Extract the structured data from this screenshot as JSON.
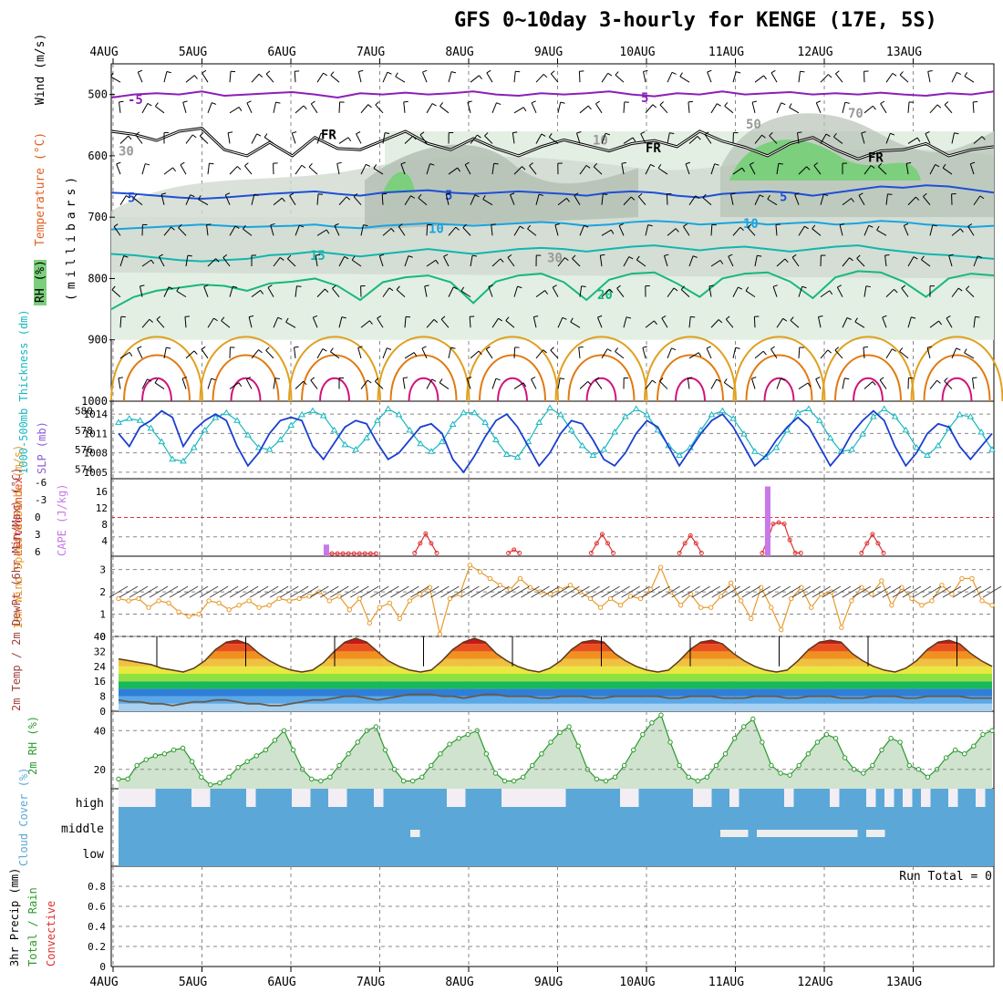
{
  "title": "GFS 0~10day 3-hourly for KENGE (17E, 5S)",
  "date_labels": [
    "4AUG",
    "5AUG",
    "6AUG",
    "7AUG",
    "8AUG",
    "9AUG",
    "10AUG",
    "11AUG",
    "12AUG",
    "13AUG"
  ],
  "colors": {
    "rh_light": "#e3efe3",
    "rh_mid": "#cfd9cf",
    "rh_dark": "#b7c2b7",
    "rh_green": "#7ccf7c",
    "t_m5": "#8b1fb8",
    "t_5": "#1f4fd6",
    "t_10": "#1aa3e0",
    "t_15": "#12b5b0",
    "t_20": "#17b87a",
    "t_25": "#e0a020",
    "t_30": "#e07a10",
    "t_35": "#d1127a",
    "slp": "#1a3fd0",
    "thickness": "#18b8c0",
    "lifted": "#e03030",
    "cape": "#c878e8",
    "wind": "#e89a2c",
    "rh2m": "#2a9a2a",
    "cloud": "#5ba8d8",
    "dewpt": "#6a5a44"
  },
  "chart_data": [
    {
      "panel": "upper_air",
      "type": "area",
      "ylabel": "(millibars)",
      "legend": [
        "RH (%)",
        "Temperature (°C)",
        "Wind (m/s)"
      ],
      "y_axis_label": "millibars",
      "ylim": [
        1000,
        450
      ],
      "y_ticks": [
        500,
        600,
        700,
        800,
        900,
        1000
      ],
      "isotherm_labels": [
        "-5",
        "5",
        "-5",
        "FR",
        "FR",
        "FR",
        "5",
        "5",
        "5",
        "10",
        "10",
        "15",
        "20",
        "30",
        "10",
        "50",
        "30",
        "70"
      ],
      "freezing_level_mb": [
        560,
        565,
        575,
        560,
        555,
        590,
        600,
        578,
        600,
        570,
        588,
        590,
        575,
        560,
        580,
        590,
        572,
        588,
        600,
        585,
        574,
        583,
        592,
        580,
        575,
        585,
        560,
        576,
        586,
        600,
        580,
        570,
        590,
        605,
        592,
        590,
        580,
        600,
        590,
        585
      ],
      "isotherm_m5_mb": [
        505,
        500,
        498,
        500,
        495,
        502,
        500,
        498,
        496,
        500,
        505,
        498,
        500,
        497,
        500,
        498,
        495,
        500,
        502,
        498,
        500,
        498,
        495,
        500,
        503,
        498,
        500,
        495,
        500,
        498,
        496,
        500,
        498,
        500,
        497,
        500,
        502,
        498,
        500,
        495
      ],
      "isotherm_5_mb": [
        660,
        662,
        665,
        668,
        670,
        668,
        665,
        662,
        660,
        658,
        662,
        665,
        660,
        658,
        656,
        660,
        662,
        660,
        658,
        660,
        662,
        665,
        660,
        658,
        660,
        665,
        668,
        662,
        660,
        658,
        660,
        665,
        660,
        655,
        650,
        652,
        648,
        650,
        655,
        660
      ],
      "isotherm_10_mb": [
        720,
        718,
        716,
        714,
        712,
        714,
        716,
        715,
        714,
        712,
        716,
        718,
        714,
        712,
        710,
        712,
        714,
        712,
        710,
        708,
        710,
        714,
        712,
        708,
        706,
        708,
        712,
        710,
        708,
        712,
        710,
        708,
        712,
        710,
        706,
        708,
        712,
        714,
        716,
        714
      ],
      "isotherm_15_mb": [
        760,
        762,
        766,
        770,
        772,
        770,
        768,
        762,
        760,
        756,
        760,
        764,
        760,
        756,
        752,
        756,
        760,
        756,
        752,
        750,
        752,
        756,
        752,
        748,
        746,
        750,
        754,
        750,
        748,
        752,
        756,
        752,
        748,
        746,
        752,
        756,
        760,
        762,
        765,
        768
      ],
      "isotherm_20_mb": [
        850,
        830,
        820,
        815,
        810,
        812,
        820,
        808,
        805,
        800,
        812,
        835,
        806,
        798,
        795,
        806,
        840,
        805,
        795,
        792,
        806,
        835,
        802,
        792,
        790,
        808,
        830,
        800,
        792,
        790,
        805,
        832,
        798,
        788,
        790,
        805,
        830,
        800,
        792,
        795
      ]
    },
    {
      "panel": "slp_thickness",
      "type": "line",
      "ylabel_left": "1000-500mb Thickness (dm)",
      "ylabel_right": "SLP (mb)",
      "left_ticks": [
        574,
        576,
        578,
        580
      ],
      "right_ticks": [
        1005,
        1008,
        1011,
        1014
      ],
      "ylim_slp": [
        1004,
        1016
      ],
      "ylim_thickness": [
        573,
        581
      ],
      "series": [
        {
          "name": "SLP",
          "values": [
            1011,
            1009,
            1012,
            1013,
            1014.5,
            1013.5,
            1009,
            1011.5,
            1013,
            1014,
            1013,
            1009,
            1006,
            1008,
            1011,
            1013,
            1013.5,
            1013,
            1009,
            1007,
            1009.5,
            1012,
            1013,
            1012.5,
            1009.5,
            1007,
            1008,
            1010,
            1012,
            1012.5,
            1011,
            1007,
            1005,
            1007.5,
            1010.5,
            1013,
            1014,
            1012,
            1009,
            1006,
            1008,
            1011,
            1013,
            1012.5,
            1010,
            1007,
            1006,
            1008,
            1011,
            1013,
            1012,
            1009,
            1006,
            1008.5,
            1011,
            1013,
            1014,
            1012,
            1009,
            1006,
            1007.5,
            1010,
            1012,
            1013.5,
            1012,
            1009,
            1006,
            1008,
            1011,
            1013,
            1014.5,
            1013,
            1009,
            1006,
            1008,
            1011,
            1012.5,
            1012,
            1009,
            1007,
            1009,
            1011
          ]
        },
        {
          "name": "Thickness",
          "values": [
            578.8,
            579.2,
            579.0,
            578.2,
            576.8,
            575.0,
            574.8,
            576.2,
            578.0,
            579.3,
            579.8,
            579.0,
            577.5,
            576.2,
            576.0,
            577.0,
            578.5,
            579.6,
            580.0,
            579.5,
            578.0,
            576.5,
            576.0,
            577.2,
            579.0,
            580.2,
            579.6,
            578.0,
            576.6,
            575.8,
            576.8,
            578.6,
            579.8,
            579.8,
            578.8,
            577.0,
            575.5,
            575.2,
            576.8,
            578.8,
            580.3,
            579.6,
            578.0,
            576.4,
            575.4,
            576.0,
            577.8,
            579.4,
            580.2,
            579.6,
            578.0,
            576.4,
            575.4,
            576.2,
            578.0,
            579.6,
            580.0,
            579.2,
            577.6,
            575.8,
            575.2,
            576.2,
            578.0,
            579.8,
            580.2,
            579.0,
            577.2,
            575.8,
            576.0,
            577.6,
            579.4,
            580.2,
            579.4,
            578.0,
            576.2,
            575.4,
            576.4,
            578.2,
            579.6,
            579.4,
            577.8,
            576.0
          ]
        }
      ]
    },
    {
      "panel": "stability",
      "type": "line",
      "ylabel_left": "Lifted Index",
      "ylabel_right": "CAPE (J/kg)",
      "li_ticks": [
        "-6",
        "-3",
        "0",
        "3",
        "6"
      ],
      "cape_ticks": [
        "16",
        "12",
        "8",
        "4"
      ],
      "series": [
        {
          "name": "Lifted Index",
          "x": [
            19.5,
            20,
            20.5,
            21,
            21.5,
            22,
            22.5,
            23,
            23.5,
            24,
            27.5,
            28,
            28.5,
            29,
            29.5,
            36,
            36.5,
            37,
            43.5,
            44,
            44.5,
            45,
            45.5,
            51.5,
            52,
            52.5,
            53,
            53.5,
            59,
            59.5,
            60,
            60.5,
            61,
            61.5,
            62,
            62.5,
            68,
            68.5,
            69,
            69.5,
            70
          ],
          "values": [
            5.6,
            5.6,
            5.6,
            5.6,
            5.6,
            5.6,
            5.6,
            5.6,
            5.6,
            5.6,
            5.5,
            4.0,
            2.5,
            4.0,
            5.5,
            5.5,
            5.0,
            5.5,
            5.5,
            4.0,
            2.6,
            4.0,
            5.5,
            5.5,
            4.0,
            2.8,
            4.0,
            5.5,
            5.5,
            3.5,
            1.0,
            0.8,
            1.0,
            3.5,
            5.5,
            5.5,
            5.5,
            4.0,
            2.6,
            4.0,
            5.5
          ]
        },
        {
          "name": "CAPE",
          "bars": [
            {
              "x": 19.5,
              "value": 3
            },
            {
              "x": 59.5,
              "value": 18
            }
          ]
        }
      ]
    },
    {
      "panel": "wind10m",
      "type": "line",
      "ylabel": "10m Wind Speed & Barbs (m/s)",
      "y_ticks": [
        0,
        1,
        2,
        3
      ],
      "ylim": [
        0,
        3.6
      ],
      "series": [
        {
          "name": "Speed",
          "values": [
            1.7,
            1.6,
            1.7,
            1.3,
            1.6,
            1.5,
            1.1,
            0.9,
            1.0,
            1.6,
            1.5,
            1.2,
            1.4,
            1.6,
            1.3,
            1.4,
            1.7,
            1.6,
            1.7,
            1.8,
            2.0,
            1.6,
            1.8,
            1.2,
            1.7,
            0.6,
            1.3,
            1.5,
            0.8,
            1.6,
            1.9,
            2.2,
            0.1,
            1.7,
            1.9,
            3.2,
            2.9,
            2.6,
            2.3,
            2.1,
            2.6,
            2.2,
            2.0,
            1.9,
            2.1,
            2.3,
            2.0,
            1.7,
            1.3,
            1.7,
            1.4,
            1.8,
            1.7,
            2.1,
            3.1,
            2.0,
            1.4,
            1.9,
            1.3,
            1.3,
            1.8,
            2.4,
            1.6,
            0.8,
            2.2,
            1.3,
            0.3,
            1.7,
            2.2,
            1.3,
            1.9,
            2.0,
            0.4,
            1.6,
            2.2,
            1.9,
            2.5,
            1.4,
            2.2,
            1.7,
            1.4,
            1.6,
            2.3,
            1.9,
            2.6,
            2.6,
            1.6,
            1.4
          ]
        }
      ]
    },
    {
      "panel": "temp2m",
      "type": "area",
      "ylabel": "2m Temp / 2m DewPt (6hr Min/Max) (°C)",
      "y_ticks": [
        0,
        8,
        16,
        24,
        32,
        40
      ],
      "ylim": [
        0,
        40
      ],
      "series": [
        {
          "name": "Temp",
          "values": [
            28,
            27,
            26,
            25,
            23,
            22,
            21,
            23,
            27,
            33,
            37,
            38,
            36,
            31,
            27,
            24,
            22,
            21,
            22,
            26,
            32,
            37,
            39,
            37,
            32,
            27,
            24,
            22,
            21,
            22,
            27,
            33,
            37,
            39,
            37,
            31,
            27,
            24,
            22,
            21,
            23,
            27,
            33,
            37,
            38,
            37,
            31,
            27,
            24,
            22,
            21,
            22,
            27,
            33,
            37,
            38,
            36,
            31,
            27,
            24,
            22,
            21,
            22,
            27,
            33,
            37,
            38,
            37,
            31,
            27,
            24,
            22,
            21,
            23,
            27,
            33,
            37,
            38,
            36,
            31,
            27,
            24
          ]
        },
        {
          "name": "DewPt",
          "values": [
            6,
            5,
            5,
            4,
            4,
            3,
            4,
            5,
            5,
            6,
            6,
            5,
            4,
            4,
            3,
            3,
            4,
            5,
            6,
            6,
            7,
            8,
            8,
            7,
            6,
            7,
            8,
            9,
            9,
            9,
            8,
            8,
            7,
            8,
            9,
            9,
            8,
            8,
            8,
            7,
            7,
            8,
            8,
            8,
            7,
            7,
            8,
            8,
            8,
            8,
            8,
            7,
            7,
            8,
            8,
            8,
            7,
            7,
            7,
            8,
            8,
            8,
            7,
            7,
            8,
            8,
            8,
            7,
            7,
            7,
            8,
            8,
            8,
            7,
            7,
            8,
            8,
            8,
            8,
            7,
            7,
            7
          ]
        }
      ]
    },
    {
      "panel": "rh2m",
      "type": "area",
      "ylabel": "2m RH (%)",
      "y_ticks": [
        20,
        40
      ],
      "ylim": [
        10,
        50
      ],
      "series": [
        {
          "name": "RH",
          "values": [
            15,
            15,
            22,
            25,
            27,
            28,
            30,
            31,
            24,
            16,
            12,
            13,
            16,
            21,
            24,
            27,
            30,
            35,
            40,
            30,
            20,
            15,
            14,
            16,
            22,
            28,
            34,
            40,
            42,
            30,
            20,
            14,
            14,
            16,
            22,
            28,
            33,
            36,
            38,
            40,
            28,
            18,
            14,
            14,
            16,
            22,
            28,
            34,
            39,
            42,
            32,
            20,
            15,
            14,
            16,
            22,
            30,
            38,
            44,
            48,
            34,
            22,
            16,
            14,
            16,
            22,
            28,
            36,
            42,
            46,
            34,
            22,
            18,
            17,
            22,
            28,
            34,
            38,
            36,
            26,
            20,
            18,
            22,
            30,
            36,
            34,
            22,
            20,
            16,
            20,
            26,
            30,
            28,
            32,
            38,
            40
          ]
        }
      ]
    },
    {
      "panel": "cloud",
      "type": "bar",
      "ylabel": "Cloud Cover (%)",
      "levels": [
        "high",
        "middle",
        "low"
      ],
      "high_gaps": [
        0,
        1,
        2,
        3,
        8,
        9,
        14,
        19,
        20,
        23,
        24,
        28,
        36,
        37,
        42,
        43,
        44,
        45,
        46,
        47,
        48,
        55,
        56,
        63,
        64,
        67,
        73,
        78,
        82,
        84,
        86,
        88,
        91,
        94
      ],
      "middle_gaps": [
        32,
        66,
        67,
        68,
        70,
        71,
        72,
        73,
        74,
        75,
        76,
        77,
        78,
        79,
        80,
        82,
        83
      ]
    },
    {
      "panel": "precip",
      "type": "bar",
      "ylabel": "3hr Precip (mm)",
      "legend": [
        "Total / Rain",
        "Convective"
      ],
      "y_ticks": [
        "0",
        "0.2",
        "0.4",
        "0.6",
        "0.8"
      ],
      "ylim": [
        0,
        1
      ],
      "run_total_label": "Run Total = 0",
      "values": []
    }
  ]
}
